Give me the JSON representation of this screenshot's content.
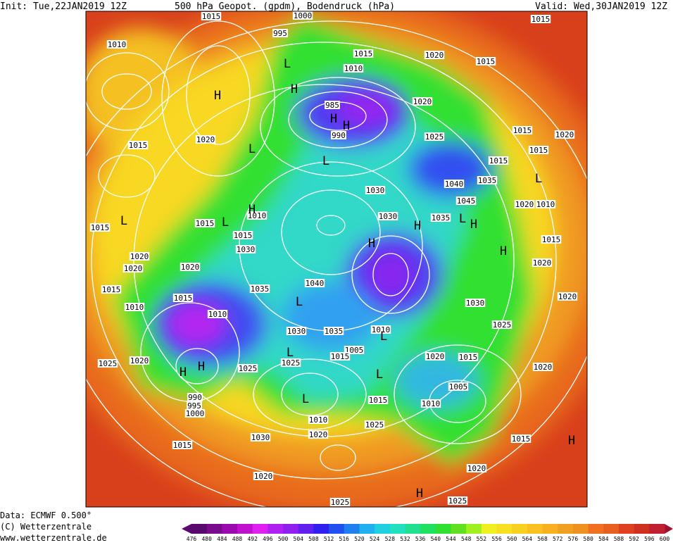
{
  "header": {
    "init": "Init: Tue,22JAN2019 12Z",
    "title": "500 hPa Geopot. (gpdm), Bodendruck (hPa)",
    "valid": "Valid: Wed,30JAN2019 12Z"
  },
  "footer": {
    "data": "Data: ECMWF  0.500°",
    "copyright": "(C) Wetterzentrale",
    "url": "www.wetterzentrale.de"
  },
  "legend": {
    "ticks": [
      476,
      480,
      484,
      488,
      492,
      496,
      500,
      504,
      508,
      512,
      516,
      520,
      524,
      528,
      532,
      536,
      540,
      544,
      548,
      552,
      556,
      560,
      564,
      568,
      572,
      576,
      580,
      584,
      588,
      592,
      596,
      600
    ],
    "colors": [
      "#5a0a6e",
      "#7a0a8e",
      "#9a0aae",
      "#c010d0",
      "#e020f0",
      "#b020f0",
      "#9020f0",
      "#6020f0",
      "#3020f0",
      "#2050f0",
      "#2080f0",
      "#20b0f0",
      "#20d0e0",
      "#20e0c0",
      "#20e090",
      "#20e060",
      "#30e030",
      "#60e020",
      "#a0f020",
      "#f0f020",
      "#f8e020",
      "#f8d020",
      "#f8c020",
      "#f8b020",
      "#f0a020",
      "#f09020",
      "#f07020",
      "#e86020",
      "#e04020",
      "#d03020",
      "#c02030",
      "#a01030"
    ]
  },
  "pressure_labels": [
    "1015",
    "1010",
    "995",
    "1000",
    "1015",
    "1010",
    "1020",
    "1015",
    "985",
    "990",
    "1020",
    "1025",
    "1015",
    "1020",
    "1030",
    "1040",
    "1035",
    "1045",
    "1020",
    "1015",
    "1015",
    "1010",
    "1035",
    "1030",
    "1015",
    "1030",
    "1020",
    "1020",
    "1020",
    "1015",
    "1035",
    "1040",
    "1010",
    "1015",
    "1010",
    "1030",
    "1025",
    "1030",
    "1035",
    "1010",
    "1005",
    "1015",
    "1020",
    "1015",
    "1025",
    "1020",
    "1025",
    "1025",
    "1020",
    "1005",
    "990",
    "995",
    "1000",
    "1015",
    "1010",
    "1010",
    "1025",
    "1020",
    "1030",
    "1015",
    "1015",
    "1020",
    "1020",
    "1025",
    "1025",
    "1015",
    "1015",
    "1020",
    "1015",
    "1015",
    "1010",
    "1015",
    "1020",
    "1020"
  ],
  "centers": [
    "H",
    "L",
    "H",
    "L",
    "H",
    "L",
    "L",
    "H",
    "L",
    "H",
    "H",
    "L",
    "H",
    "H",
    "L",
    "L",
    "L",
    "L",
    "H",
    "H",
    "L",
    "L",
    "H",
    "H",
    "H"
  ]
}
